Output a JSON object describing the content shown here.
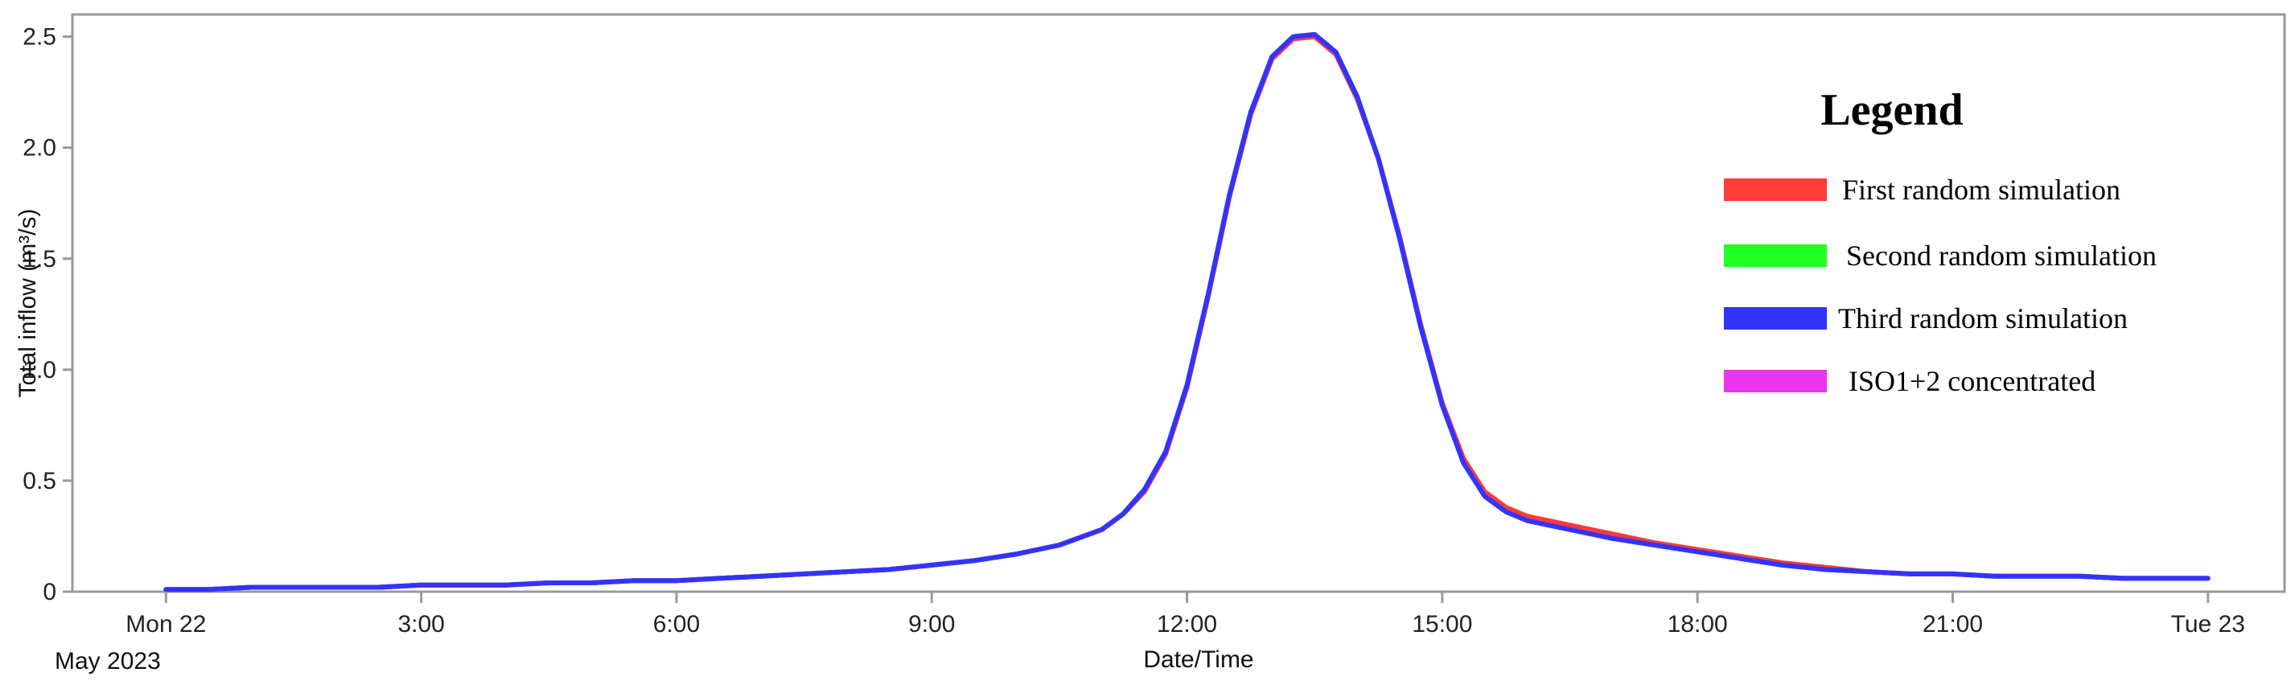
{
  "chart_data": {
    "type": "line",
    "title": "",
    "xlabel": "Date/Time",
    "ylabel": "Total inflow (m³/s)",
    "date_label": "May 2023",
    "x_unit": "hours from Mon 22 May 2023 00:00",
    "xlim": [
      -1.1,
      24.9
    ],
    "ylim": [
      0,
      2.6
    ],
    "x_ticks": [
      {
        "x": 0,
        "label": "Mon 22"
      },
      {
        "x": 3,
        "label": "3:00"
      },
      {
        "x": 6,
        "label": "6:00"
      },
      {
        "x": 9,
        "label": "9:00"
      },
      {
        "x": 12,
        "label": "12:00"
      },
      {
        "x": 15,
        "label": "15:00"
      },
      {
        "x": 18,
        "label": "18:00"
      },
      {
        "x": 21,
        "label": "21:00"
      },
      {
        "x": 24,
        "label": "Tue 23"
      }
    ],
    "y_ticks": [
      {
        "y": 0,
        "label": "0"
      },
      {
        "y": 0.5,
        "label": "0.5"
      },
      {
        "y": 1.0,
        "label": "1.0"
      },
      {
        "y": 1.5,
        "label": "1.5"
      },
      {
        "y": 2.0,
        "label": "2.0"
      },
      {
        "y": 2.5,
        "label": "2.5"
      }
    ],
    "grid": false,
    "legend": {
      "title": "Legend",
      "position": "top-right",
      "entries": [
        {
          "name": "First random simulation",
          "color": "#ff3b3b"
        },
        {
          "name": "Second random simulation",
          "color": "#22ff22"
        },
        {
          "name": "Third random simulation",
          "color": "#3333ff"
        },
        {
          "name": "ISO1+2 concentrated",
          "color": "#ee33ee"
        }
      ]
    },
    "x": [
      0,
      0.5,
      1,
      1.5,
      2,
      2.5,
      3,
      3.5,
      4,
      4.5,
      5,
      5.5,
      6,
      6.5,
      7,
      7.5,
      8,
      8.5,
      9,
      9.5,
      10,
      10.5,
      11,
      11.25,
      11.5,
      11.75,
      12,
      12.25,
      12.5,
      12.75,
      13,
      13.25,
      13.5,
      13.75,
      14,
      14.25,
      14.5,
      14.75,
      15,
      15.25,
      15.5,
      15.75,
      16,
      16.5,
      17,
      17.5,
      18,
      18.5,
      19,
      19.5,
      20,
      20.5,
      21,
      21.5,
      22,
      22.5,
      23,
      23.5,
      24
    ],
    "series": [
      {
        "name": "First random simulation",
        "color": "#ff3b3b",
        "values": [
          0.01,
          0.01,
          0.02,
          0.02,
          0.02,
          0.02,
          0.03,
          0.03,
          0.03,
          0.04,
          0.04,
          0.05,
          0.05,
          0.06,
          0.07,
          0.08,
          0.09,
          0.1,
          0.12,
          0.14,
          0.17,
          0.21,
          0.28,
          0.35,
          0.45,
          0.62,
          0.92,
          1.33,
          1.78,
          2.15,
          2.4,
          2.49,
          2.5,
          2.42,
          2.22,
          1.95,
          1.6,
          1.2,
          0.85,
          0.6,
          0.45,
          0.38,
          0.34,
          0.3,
          0.26,
          0.22,
          0.19,
          0.16,
          0.13,
          0.11,
          0.09,
          0.08,
          0.08,
          0.07,
          0.07,
          0.07,
          0.06,
          0.06,
          0.06
        ]
      },
      {
        "name": "Second random simulation",
        "color": "#22ff22",
        "values": [
          0.01,
          0.01,
          0.02,
          0.02,
          0.02,
          0.02,
          0.03,
          0.03,
          0.03,
          0.04,
          0.04,
          0.05,
          0.05,
          0.06,
          0.07,
          0.08,
          0.09,
          0.1,
          0.12,
          0.14,
          0.17,
          0.21,
          0.28,
          0.35,
          0.46,
          0.63,
          0.93,
          1.34,
          1.79,
          2.16,
          2.41,
          2.5,
          2.51,
          2.43,
          2.23,
          1.95,
          1.59,
          1.19,
          0.84,
          0.58,
          0.43,
          0.36,
          0.32,
          0.28,
          0.24,
          0.21,
          0.18,
          0.15,
          0.12,
          0.1,
          0.09,
          0.08,
          0.08,
          0.07,
          0.07,
          0.07,
          0.06,
          0.06,
          0.06
        ]
      },
      {
        "name": "Third random simulation",
        "color": "#3333ff",
        "values": [
          0.01,
          0.01,
          0.02,
          0.02,
          0.02,
          0.02,
          0.03,
          0.03,
          0.03,
          0.04,
          0.04,
          0.05,
          0.05,
          0.06,
          0.07,
          0.08,
          0.09,
          0.1,
          0.12,
          0.14,
          0.17,
          0.21,
          0.28,
          0.35,
          0.46,
          0.63,
          0.93,
          1.34,
          1.79,
          2.16,
          2.41,
          2.5,
          2.51,
          2.43,
          2.23,
          1.95,
          1.59,
          1.19,
          0.84,
          0.58,
          0.43,
          0.36,
          0.32,
          0.28,
          0.24,
          0.21,
          0.18,
          0.15,
          0.12,
          0.1,
          0.09,
          0.08,
          0.08,
          0.07,
          0.07,
          0.07,
          0.06,
          0.06,
          0.06
        ]
      },
      {
        "name": "ISO1+2 concentrated",
        "color": "#ee33ee",
        "values": [
          0.01,
          0.01,
          0.02,
          0.02,
          0.02,
          0.02,
          0.03,
          0.03,
          0.03,
          0.04,
          0.04,
          0.05,
          0.05,
          0.06,
          0.07,
          0.08,
          0.09,
          0.1,
          0.12,
          0.14,
          0.17,
          0.21,
          0.28,
          0.35,
          0.46,
          0.63,
          0.93,
          1.34,
          1.79,
          2.16,
          2.41,
          2.5,
          2.51,
          2.43,
          2.23,
          1.95,
          1.59,
          1.19,
          0.84,
          0.58,
          0.43,
          0.36,
          0.32,
          0.28,
          0.24,
          0.21,
          0.18,
          0.15,
          0.12,
          0.1,
          0.09,
          0.08,
          0.08,
          0.07,
          0.07,
          0.07,
          0.06,
          0.06,
          0.06
        ]
      }
    ],
    "draw_order": [
      "ISO1+2 concentrated",
      "Second random simulation",
      "First random simulation",
      "Third random simulation"
    ]
  }
}
